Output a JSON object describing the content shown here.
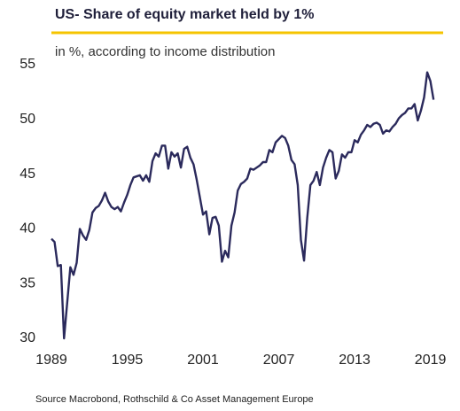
{
  "chart_data": {
    "type": "line",
    "title": "US- Share of equity market held by 1%",
    "subtitle": "in %, according to income distribution",
    "source": "Source Macrobond, Rothschild & Co Asset Management Europe",
    "color": "#2b2a5c",
    "x": [
      1989.0,
      1989.25,
      1989.5,
      1989.75,
      1990.0,
      1990.5,
      1990.75,
      1991.0,
      1991.25,
      1991.5,
      1991.75,
      1992.0,
      1992.25,
      1992.5,
      1992.75,
      1993.0,
      1993.25,
      1993.5,
      1993.75,
      1994.0,
      1994.25,
      1994.5,
      1994.75,
      1995.0,
      1995.25,
      1995.5,
      1995.75,
      1996.0,
      1996.25,
      1996.5,
      1996.75,
      1997.0,
      1997.25,
      1997.5,
      1997.75,
      1998.0,
      1998.25,
      1998.5,
      1998.75,
      1999.0,
      1999.25,
      1999.5,
      1999.75,
      2000.0,
      2000.25,
      2000.5,
      2000.75,
      2001.0,
      2001.25,
      2001.5,
      2001.75,
      2002.0,
      2002.25,
      2002.5,
      2002.75,
      2003.0,
      2003.25,
      2003.5,
      2003.75,
      2004.0,
      2004.25,
      2004.5,
      2004.75,
      2005.0,
      2005.25,
      2005.5,
      2005.75,
      2006.0,
      2006.25,
      2006.5,
      2006.75,
      2007.0,
      2007.25,
      2007.5,
      2007.75,
      2008.0,
      2008.25,
      2008.5,
      2008.75,
      2009.0,
      2009.25,
      2009.5,
      2009.75,
      2010.0,
      2010.25,
      2010.5,
      2010.75,
      2011.0,
      2011.25,
      2011.5,
      2011.75,
      2012.0,
      2012.25,
      2012.5,
      2012.75,
      2013.0,
      2013.25,
      2013.5,
      2013.75,
      2014.0,
      2014.25,
      2014.5,
      2014.75,
      2015.0,
      2015.25,
      2015.5,
      2015.75,
      2016.0,
      2016.25,
      2016.5,
      2016.75,
      2017.0,
      2017.25,
      2017.5,
      2017.75,
      2018.0,
      2018.25,
      2018.5,
      2018.75,
      2019.0,
      2019.25
    ],
    "values": [
      39.1,
      38.8,
      36.6,
      36.7,
      30.0,
      36.5,
      35.8,
      36.9,
      40.0,
      39.4,
      39.0,
      39.9,
      41.5,
      41.9,
      42.1,
      42.6,
      43.3,
      42.5,
      42.0,
      41.8,
      42.0,
      41.6,
      42.4,
      43.1,
      44.0,
      44.7,
      44.8,
      44.9,
      44.4,
      44.9,
      44.3,
      46.2,
      46.9,
      46.6,
      47.6,
      47.6,
      45.5,
      47.0,
      46.6,
      46.9,
      45.6,
      47.3,
      47.5,
      46.5,
      45.9,
      44.5,
      42.9,
      41.3,
      41.6,
      39.5,
      41.0,
      41.1,
      40.3,
      37.0,
      38.0,
      37.4,
      40.3,
      41.5,
      43.5,
      44.1,
      44.3,
      44.6,
      45.5,
      45.4,
      45.6,
      45.8,
      46.1,
      46.1,
      47.2,
      47.0,
      47.9,
      48.2,
      48.5,
      48.3,
      47.6,
      46.3,
      45.9,
      44.0,
      39.0,
      37.1,
      41.0,
      44.0,
      44.4,
      45.2,
      44.0,
      45.6,
      46.5,
      47.2,
      47.0,
      44.6,
      45.3,
      46.8,
      46.5,
      47.0,
      47.0,
      48.1,
      47.9,
      48.6,
      49.0,
      49.5,
      49.3,
      49.6,
      49.7,
      49.5,
      48.7,
      49.0,
      48.9,
      49.3,
      49.6,
      50.1,
      50.4,
      50.6,
      51.0,
      51.0,
      51.4,
      49.9,
      50.8,
      52.0,
      54.3,
      53.5,
      51.8
    ],
    "xlim": [
      1989,
      2019.8
    ],
    "xticks": [
      1989,
      1995,
      2001,
      2007,
      2013,
      2019
    ],
    "ylim": [
      30,
      55
    ],
    "yticks": [
      30,
      35,
      40,
      45,
      50,
      55
    ],
    "grid": false
  }
}
